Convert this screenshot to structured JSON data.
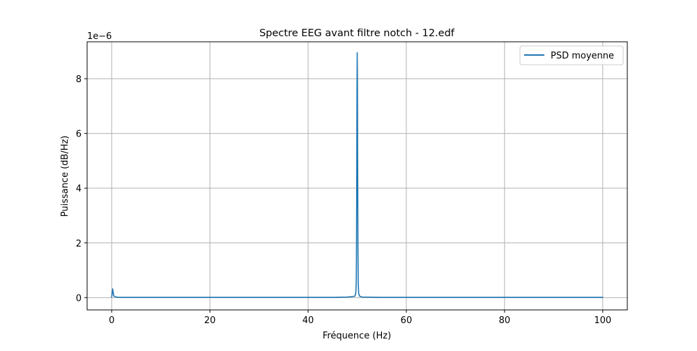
{
  "chart_data": {
    "type": "line",
    "title": "Spectre EEG avant filtre notch - 12.edf",
    "xlabel": "Fréquence (Hz)",
    "ylabel": "Puissance (dB/Hz)",
    "y_scale_label": "1e−6",
    "y_multiplier": 1e-06,
    "xlim": [
      -5,
      105
    ],
    "ylim": [
      -0.45,
      9.35
    ],
    "x_ticks": [
      0,
      20,
      40,
      60,
      80,
      100
    ],
    "y_ticks": [
      0,
      2,
      4,
      6,
      8
    ],
    "grid": true,
    "legend_position": "upper-right",
    "line_color": "#1f77b4",
    "series": [
      {
        "name": "PSD moyenne",
        "x": [
          0,
          0.1,
          0.2,
          0.3,
          0.4,
          0.5,
          0.7,
          1.0,
          1.5,
          2.0,
          3.0,
          5.0,
          10.0,
          20.0,
          30.0,
          40.0,
          45.0,
          48.0,
          49.5,
          49.7,
          49.8,
          49.85,
          49.9,
          49.95,
          50.0,
          50.05,
          50.1,
          50.15,
          50.2,
          50.3,
          50.5,
          51.0,
          55.0,
          60.0,
          80.0,
          100.0
        ],
        "y": [
          0.02,
          0.15,
          0.32,
          0.2,
          0.08,
          0.05,
          0.03,
          0.02,
          0.01,
          0.01,
          0.01,
          0.01,
          0.01,
          0.01,
          0.01,
          0.01,
          0.01,
          0.02,
          0.05,
          0.15,
          0.5,
          1.5,
          4.0,
          7.5,
          8.95,
          7.8,
          4.5,
          1.8,
          0.6,
          0.15,
          0.05,
          0.02,
          0.01,
          0.01,
          0.01,
          0.01
        ]
      }
    ]
  }
}
